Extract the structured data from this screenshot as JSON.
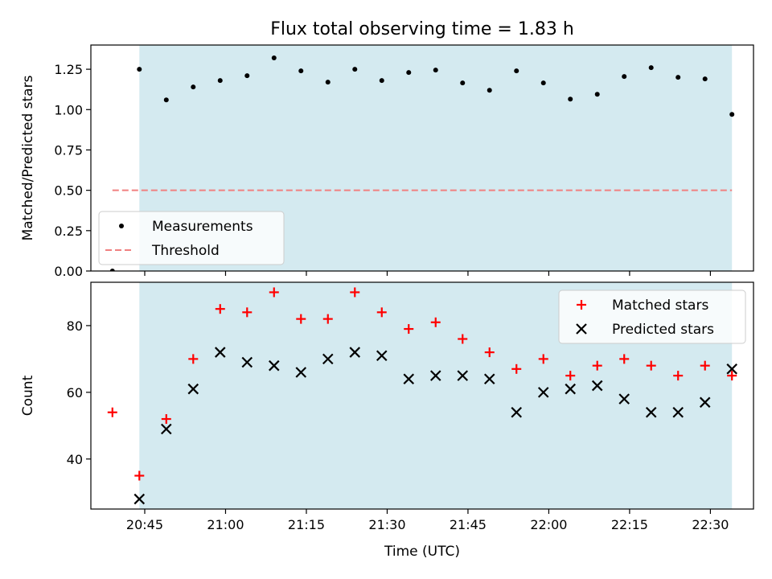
{
  "chart_data": [
    {
      "type": "scatter",
      "title": "Flux total observing time = 1.83 h",
      "xlabel": "",
      "ylabel": "Matched/Predicted stars",
      "ylim": [
        0,
        1.4
      ],
      "yticks": [
        "0.00",
        "0.25",
        "0.50",
        "0.75",
        "1.00",
        "1.25"
      ],
      "xlim": [
        "20:35",
        "22:38"
      ],
      "shaded_interval": [
        "20:44",
        "22:34"
      ],
      "shade_color": "#d4eaf0",
      "grid": false,
      "legend": "lower-left",
      "series": [
        {
          "name": "Measurements",
          "marker": "dot",
          "color": "#000000",
          "points": [
            {
              "x": "20:39",
              "y": 0.0
            },
            {
              "x": "20:44",
              "y": 1.25
            },
            {
              "x": "20:49",
              "y": 1.06
            },
            {
              "x": "20:54",
              "y": 1.14
            },
            {
              "x": "20:59",
              "y": 1.18
            },
            {
              "x": "21:04",
              "y": 1.21
            },
            {
              "x": "21:09",
              "y": 1.32
            },
            {
              "x": "21:14",
              "y": 1.24
            },
            {
              "x": "21:19",
              "y": 1.17
            },
            {
              "x": "21:24",
              "y": 1.25
            },
            {
              "x": "21:29",
              "y": 1.18
            },
            {
              "x": "21:34",
              "y": 1.23
            },
            {
              "x": "21:39",
              "y": 1.245
            },
            {
              "x": "21:44",
              "y": 1.165
            },
            {
              "x": "21:49",
              "y": 1.12
            },
            {
              "x": "21:54",
              "y": 1.24
            },
            {
              "x": "21:59",
              "y": 1.165
            },
            {
              "x": "22:04",
              "y": 1.065
            },
            {
              "x": "22:09",
              "y": 1.095
            },
            {
              "x": "22:14",
              "y": 1.205
            },
            {
              "x": "22:19",
              "y": 1.26
            },
            {
              "x": "22:24",
              "y": 1.2
            },
            {
              "x": "22:29",
              "y": 1.19
            },
            {
              "x": "22:34",
              "y": 0.97
            }
          ]
        },
        {
          "name": "Threshold",
          "marker": "dashed-line",
          "color": "#f08080",
          "points": [
            {
              "x": "20:39",
              "y": 0.5
            },
            {
              "x": "22:34",
              "y": 0.5
            }
          ]
        }
      ]
    },
    {
      "type": "scatter",
      "title": "",
      "xlabel": "Time (UTC)",
      "ylabel": "Count",
      "ylim": [
        25,
        93
      ],
      "yticks": [
        "40",
        "60",
        "80"
      ],
      "xlim": [
        "20:35",
        "22:38"
      ],
      "xticks": [
        "20:45",
        "21:00",
        "21:15",
        "21:30",
        "21:45",
        "22:00",
        "22:15",
        "22:30"
      ],
      "shaded_interval": [
        "20:44",
        "22:34"
      ],
      "shade_color": "#d4eaf0",
      "grid": false,
      "legend": "top-right",
      "series": [
        {
          "name": "Matched stars",
          "marker": "plus",
          "color": "#ff0000",
          "points": [
            {
              "x": "20:39",
              "y": 54
            },
            {
              "x": "20:44",
              "y": 35
            },
            {
              "x": "20:49",
              "y": 52
            },
            {
              "x": "20:54",
              "y": 70
            },
            {
              "x": "20:59",
              "y": 85
            },
            {
              "x": "21:04",
              "y": 84
            },
            {
              "x": "21:09",
              "y": 90
            },
            {
              "x": "21:14",
              "y": 82
            },
            {
              "x": "21:19",
              "y": 82
            },
            {
              "x": "21:24",
              "y": 90
            },
            {
              "x": "21:29",
              "y": 84
            },
            {
              "x": "21:34",
              "y": 79
            },
            {
              "x": "21:39",
              "y": 81
            },
            {
              "x": "21:44",
              "y": 76
            },
            {
              "x": "21:49",
              "y": 72
            },
            {
              "x": "21:54",
              "y": 67
            },
            {
              "x": "21:59",
              "y": 70
            },
            {
              "x": "22:04",
              "y": 65
            },
            {
              "x": "22:09",
              "y": 68
            },
            {
              "x": "22:14",
              "y": 70
            },
            {
              "x": "22:19",
              "y": 68
            },
            {
              "x": "22:24",
              "y": 65
            },
            {
              "x": "22:29",
              "y": 68
            },
            {
              "x": "22:34",
              "y": 65
            }
          ]
        },
        {
          "name": "Predicted stars",
          "marker": "x",
          "color": "#000000",
          "points": [
            {
              "x": "20:44",
              "y": 28
            },
            {
              "x": "20:49",
              "y": 49
            },
            {
              "x": "20:54",
              "y": 61
            },
            {
              "x": "20:59",
              "y": 72
            },
            {
              "x": "21:04",
              "y": 69
            },
            {
              "x": "21:09",
              "y": 68
            },
            {
              "x": "21:14",
              "y": 66
            },
            {
              "x": "21:19",
              "y": 70
            },
            {
              "x": "21:24",
              "y": 72
            },
            {
              "x": "21:29",
              "y": 71
            },
            {
              "x": "21:34",
              "y": 64
            },
            {
              "x": "21:39",
              "y": 65
            },
            {
              "x": "21:44",
              "y": 65
            },
            {
              "x": "21:49",
              "y": 64
            },
            {
              "x": "21:54",
              "y": 54
            },
            {
              "x": "21:59",
              "y": 60
            },
            {
              "x": "22:04",
              "y": 61
            },
            {
              "x": "22:09",
              "y": 62
            },
            {
              "x": "22:14",
              "y": 58
            },
            {
              "x": "22:19",
              "y": 54
            },
            {
              "x": "22:24",
              "y": 54
            },
            {
              "x": "22:29",
              "y": 57
            },
            {
              "x": "22:34",
              "y": 67
            }
          ]
        }
      ]
    }
  ]
}
